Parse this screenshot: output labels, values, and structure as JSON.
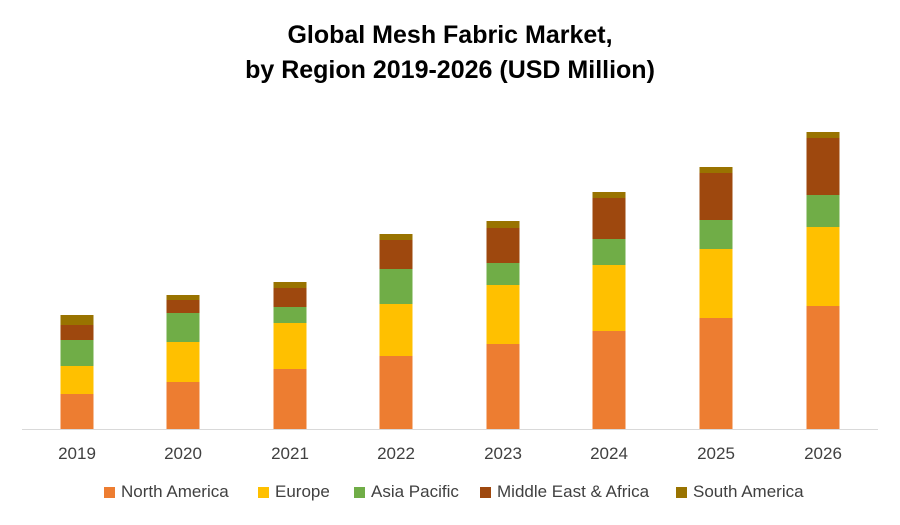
{
  "chart_data": {
    "type": "bar",
    "stacked": true,
    "title": "Global Mesh Fabric Market,",
    "subtitle": "by Region 2019-2026 (USD Million)",
    "categories": [
      "2019",
      "2020",
      "2021",
      "2022",
      "2023",
      "2024",
      "2025",
      "2026"
    ],
    "series": [
      {
        "name": "North America",
        "color": "#ED7D31",
        "values": [
          35,
          47,
          60,
          73,
          85,
          98,
          111,
          123
        ]
      },
      {
        "name": "Europe",
        "color": "#FFC000",
        "values": [
          28,
          40,
          46,
          52,
          59,
          66,
          69,
          79
        ]
      },
      {
        "name": "Asia Pacific",
        "color": "#70AD47",
        "values": [
          26,
          29,
          16,
          35,
          22,
          26,
          29,
          32
        ]
      },
      {
        "name": "Middle East & Africa",
        "color": "#9E480E",
        "values": [
          15,
          13,
          19,
          29,
          35,
          41,
          47,
          57
        ]
      },
      {
        "name": "South America",
        "color": "#997300",
        "values": [
          10,
          5,
          6,
          6,
          7,
          6,
          6,
          6
        ]
      }
    ],
    "legend_position": "bottom",
    "grid": false
  }
}
